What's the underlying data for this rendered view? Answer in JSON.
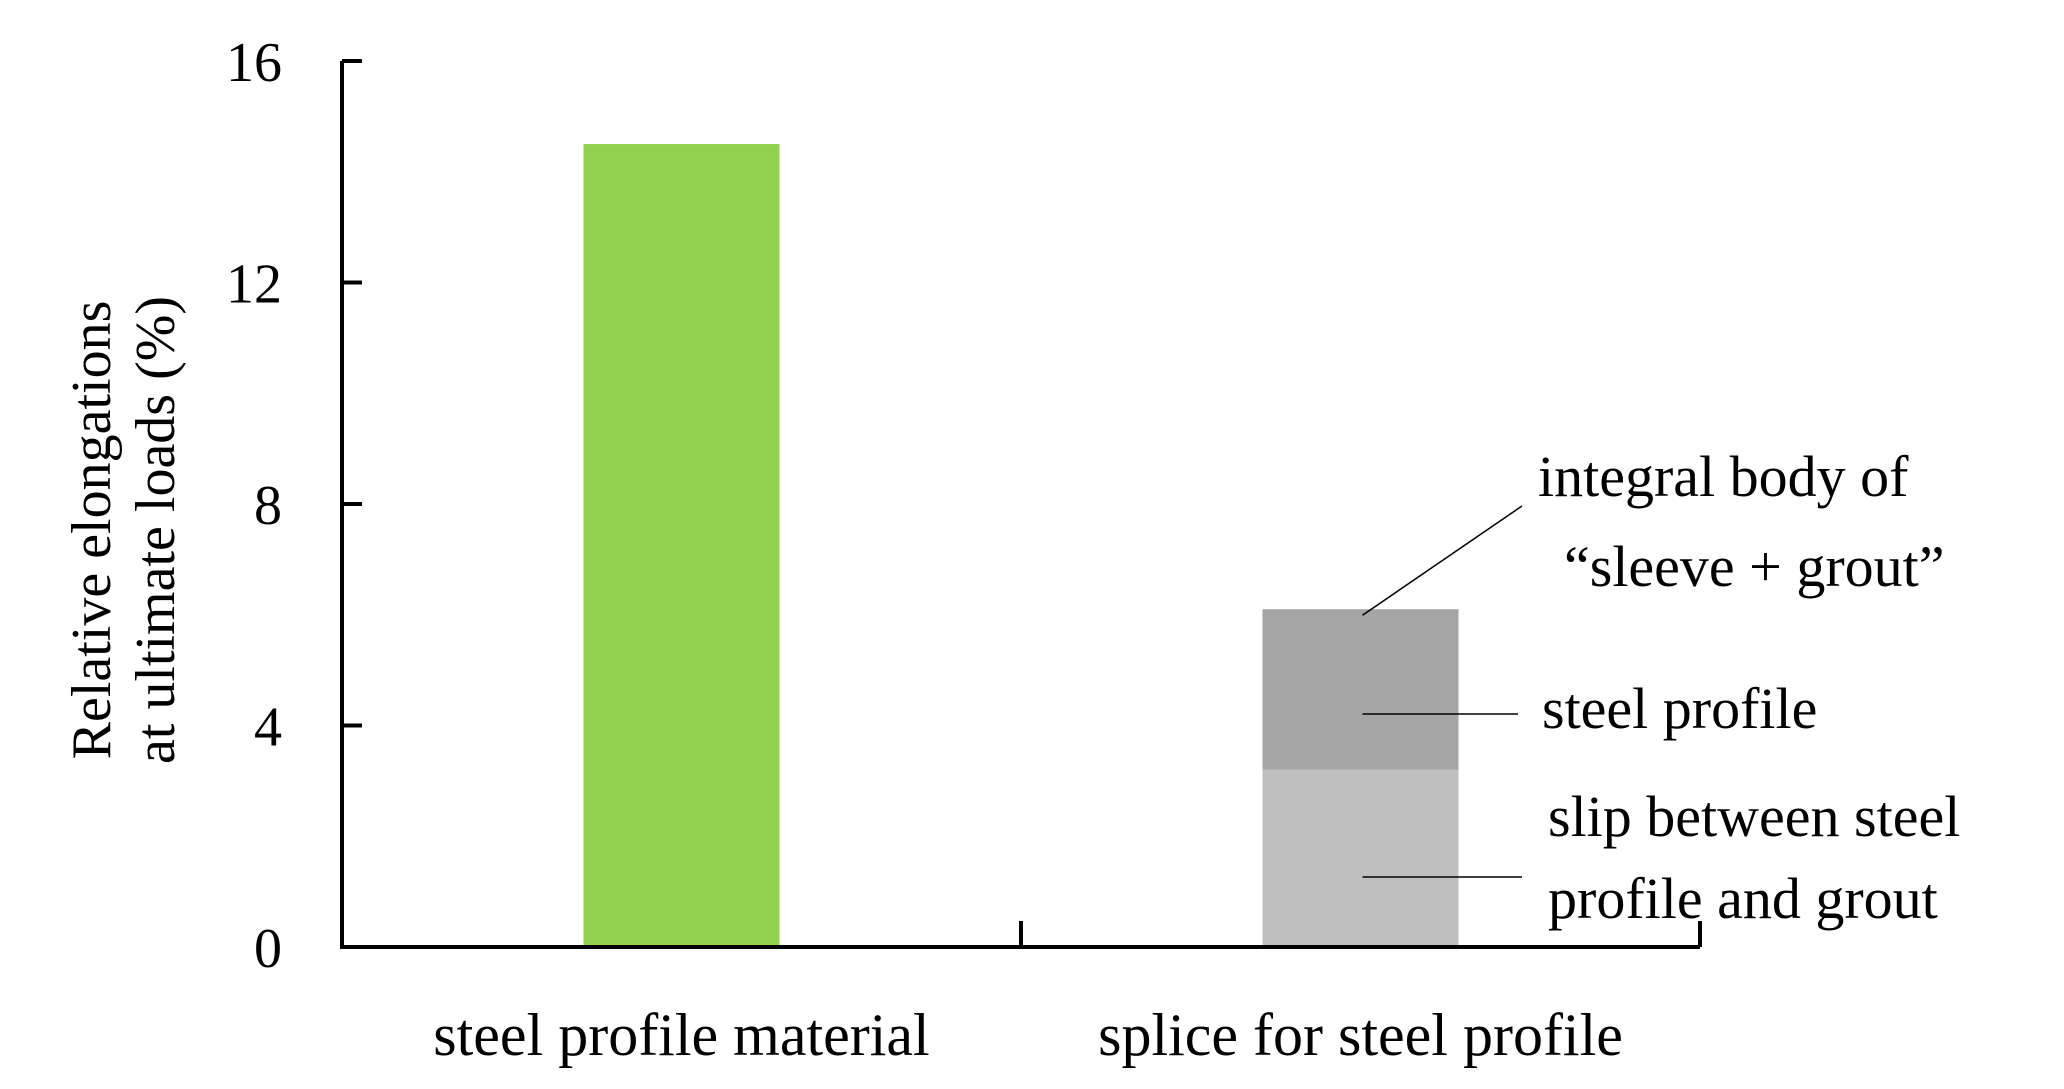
{
  "chart_data": {
    "type": "bar",
    "ylabel_lines": [
      "Relative elongations",
      "at ultimate loads (%)"
    ],
    "ylim": [
      0,
      16
    ],
    "yticks": [
      0,
      4,
      8,
      12,
      16
    ],
    "grid": false,
    "categories": [
      "steel profile material",
      "splice for steel profile"
    ],
    "bars": [
      {
        "category": "steel profile material",
        "segments": [
          {
            "value": 14.5,
            "color": "#92d050"
          }
        ]
      },
      {
        "category": "splice for steel profile",
        "segments": [
          {
            "value": 3.2,
            "color": "#bfbfbf",
            "label_lines": [
              "slip between steel",
              "profile and grout"
            ]
          },
          {
            "value": 2.9,
            "color": "#a5a5a5",
            "label_lines": [
              "steel profile"
            ]
          }
        ],
        "total_label_lines": [
          "integral body of",
          "“sleeve + grout”"
        ]
      }
    ]
  }
}
